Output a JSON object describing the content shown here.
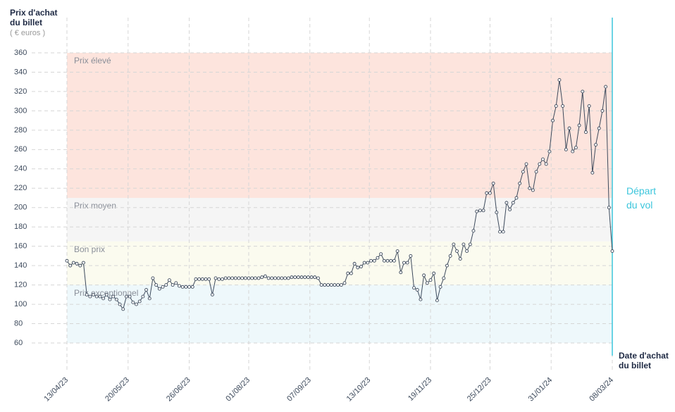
{
  "chart_data": {
    "type": "line",
    "y_title": "Prix d'achat du billet",
    "y_unit": "( € euros )",
    "x_title": "Date d'achat du billet",
    "annotation": {
      "label": "Départ du vol",
      "x": "2024-03-08",
      "color": "#3cc6dc"
    },
    "bands": [
      {
        "label": "Prix élevé",
        "from": 210,
        "to": 360,
        "color": "#fde4dd"
      },
      {
        "label": "Prix moyen",
        "from": 165,
        "to": 210,
        "color": "#f5f5f5"
      },
      {
        "label": "Bon prix",
        "from": 120,
        "to": 165,
        "color": "#fbfbef"
      },
      {
        "label": "Prix exceptionnel",
        "from": 60,
        "to": 120,
        "color": "#eef8fb"
      }
    ],
    "color": "#3d4a5c",
    "grid": true,
    "xlim": [
      "2023-04-13",
      "2024-03-08"
    ],
    "xticks": [
      {
        "value": "2023-04-13",
        "label": "13/04/23"
      },
      {
        "value": "2023-05-20",
        "label": "20/05/23"
      },
      {
        "value": "2023-06-26",
        "label": "26/06/23"
      },
      {
        "value": "2023-08-01",
        "label": "01/08/23"
      },
      {
        "value": "2023-09-07",
        "label": "07/09/23"
      },
      {
        "value": "2023-10-13",
        "label": "13/10/23"
      },
      {
        "value": "2023-11-19",
        "label": "19/11/23"
      },
      {
        "value": "2023-12-25",
        "label": "25/12/23"
      },
      {
        "value": "2024-01-31",
        "label": "31/01/24"
      },
      {
        "value": "2024-03-08",
        "label": "08/03/24"
      }
    ],
    "ylim": [
      60,
      360
    ],
    "yticks": [
      60,
      80,
      100,
      120,
      140,
      160,
      180,
      200,
      220,
      240,
      260,
      280,
      300,
      320,
      340,
      360
    ],
    "x": [
      "2023-04-13",
      "2023-04-15",
      "2023-04-17",
      "2023-04-19",
      "2023-04-21",
      "2023-04-23",
      "2023-04-25",
      "2023-04-27",
      "2023-04-29",
      "2023-05-01",
      "2023-05-03",
      "2023-05-05",
      "2023-05-07",
      "2023-05-09",
      "2023-05-11",
      "2023-05-13",
      "2023-05-15",
      "2023-05-17",
      "2023-05-19",
      "2023-05-21",
      "2023-05-23",
      "2023-05-25",
      "2023-05-27",
      "2023-05-29",
      "2023-05-31",
      "2023-06-02",
      "2023-06-04",
      "2023-06-06",
      "2023-06-08",
      "2023-06-10",
      "2023-06-12",
      "2023-06-14",
      "2023-06-16",
      "2023-06-18",
      "2023-06-20",
      "2023-06-22",
      "2023-06-24",
      "2023-06-26",
      "2023-06-28",
      "2023-06-30",
      "2023-07-02",
      "2023-07-04",
      "2023-07-06",
      "2023-07-08",
      "2023-07-10",
      "2023-07-12",
      "2023-07-14",
      "2023-07-16",
      "2023-07-18",
      "2023-07-20",
      "2023-07-22",
      "2023-07-24",
      "2023-07-26",
      "2023-07-28",
      "2023-07-30",
      "2023-08-01",
      "2023-08-03",
      "2023-08-05",
      "2023-08-07",
      "2023-08-09",
      "2023-08-11",
      "2023-08-13",
      "2023-08-15",
      "2023-08-17",
      "2023-08-19",
      "2023-08-21",
      "2023-08-23",
      "2023-08-25",
      "2023-08-27",
      "2023-08-29",
      "2023-08-31",
      "2023-09-02",
      "2023-09-04",
      "2023-09-06",
      "2023-09-08",
      "2023-09-10",
      "2023-09-12",
      "2023-09-14",
      "2023-09-16",
      "2023-09-18",
      "2023-09-20",
      "2023-09-22",
      "2023-09-24",
      "2023-09-26",
      "2023-09-28",
      "2023-09-30",
      "2023-10-02",
      "2023-10-04",
      "2023-10-06",
      "2023-10-08",
      "2023-10-10",
      "2023-10-12",
      "2023-10-14",
      "2023-10-16",
      "2023-10-18",
      "2023-10-20",
      "2023-10-22",
      "2023-10-24",
      "2023-10-26",
      "2023-10-28",
      "2023-10-30",
      "2023-11-01",
      "2023-11-03",
      "2023-11-05",
      "2023-11-07",
      "2023-11-09",
      "2023-11-11",
      "2023-11-13",
      "2023-11-15",
      "2023-11-17",
      "2023-11-19",
      "2023-11-21",
      "2023-11-23",
      "2023-11-25",
      "2023-11-27",
      "2023-11-29",
      "2023-12-01",
      "2023-12-03",
      "2023-12-05",
      "2023-12-07",
      "2023-12-09",
      "2023-12-11",
      "2023-12-13",
      "2023-12-15",
      "2023-12-17",
      "2023-12-19",
      "2023-12-21",
      "2023-12-23",
      "2023-12-25",
      "2023-12-27",
      "2023-12-29",
      "2023-12-31",
      "2024-01-02",
      "2024-01-04",
      "2024-01-06",
      "2024-01-08",
      "2024-01-10",
      "2024-01-12",
      "2024-01-14",
      "2024-01-16",
      "2024-01-18",
      "2024-01-20",
      "2024-01-22",
      "2024-01-24",
      "2024-01-26",
      "2024-01-28",
      "2024-01-30",
      "2024-02-01",
      "2024-02-03",
      "2024-02-05",
      "2024-02-07",
      "2024-02-09",
      "2024-02-11",
      "2024-02-13",
      "2024-02-15",
      "2024-02-17",
      "2024-02-19",
      "2024-02-21",
      "2024-02-23",
      "2024-02-25",
      "2024-02-27",
      "2024-02-29",
      "2024-03-02",
      "2024-03-04",
      "2024-03-06",
      "2024-03-08"
    ],
    "values": [
      145,
      140,
      143,
      142,
      140,
      143,
      110,
      108,
      110,
      108,
      108,
      106,
      110,
      105,
      108,
      105,
      100,
      95,
      108,
      108,
      102,
      100,
      103,
      108,
      115,
      106,
      127,
      120,
      116,
      118,
      120,
      125,
      120,
      122,
      119,
      118,
      118,
      118,
      118,
      126,
      126,
      126,
      126,
      126,
      110,
      127,
      126,
      126,
      127,
      127,
      127,
      127,
      127,
      127,
      127,
      127,
      127,
      127,
      127,
      128,
      129,
      127,
      127,
      127,
      127,
      127,
      127,
      127,
      128,
      128,
      128,
      128,
      128,
      128,
      128,
      128,
      127,
      120,
      120,
      120,
      120,
      120,
      120,
      120,
      122,
      132,
      132,
      142,
      138,
      139,
      143,
      143,
      145,
      145,
      148,
      152,
      145,
      145,
      145,
      145,
      155,
      133,
      143,
      143,
      150,
      117,
      115,
      105,
      130,
      122,
      125,
      132,
      104,
      118,
      127,
      140,
      150,
      162,
      155,
      147,
      162,
      155,
      162,
      176,
      196,
      197,
      197,
      215,
      215,
      225,
      195,
      175,
      175,
      205,
      198,
      205,
      210,
      225,
      237,
      245,
      220,
      218,
      237,
      245,
      250,
      245,
      258,
      290,
      305,
      332,
      305,
      260,
      282,
      258,
      262,
      285,
      320,
      278,
      305,
      236,
      265,
      282,
      300,
      325,
      200,
      155
    ]
  }
}
